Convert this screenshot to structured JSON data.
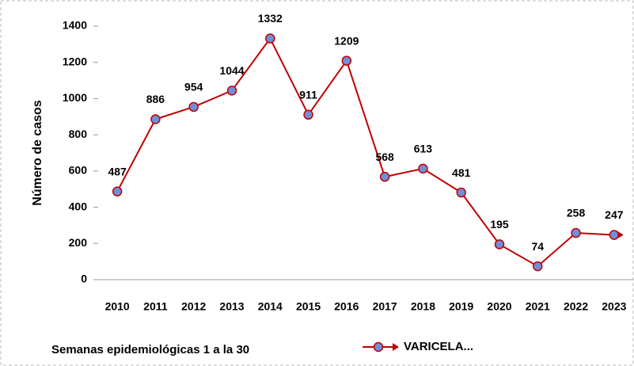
{
  "chart_data": {
    "type": "line",
    "y_label": "Número de casos",
    "annotation": "Semanas epidemiológicas 1 a la 30",
    "categories": [
      "2010",
      "2011",
      "2012",
      "2013",
      "2014",
      "2015",
      "2016",
      "2017",
      "2018",
      "2019",
      "2020",
      "2021",
      "2022",
      "2023"
    ],
    "series": [
      {
        "name": "VARICELA...",
        "color": "#c00000",
        "marker_color": "#6f8fd8",
        "values": [
          487,
          886,
          954,
          1044,
          1332,
          911,
          1209,
          568,
          613,
          481,
          195,
          74,
          258,
          247
        ]
      }
    ],
    "ylim": [
      0,
      1400
    ],
    "yticks": [
      0,
      200,
      400,
      600,
      800,
      1000,
      1200,
      1400
    ],
    "grid": false,
    "legend": "bottom"
  }
}
